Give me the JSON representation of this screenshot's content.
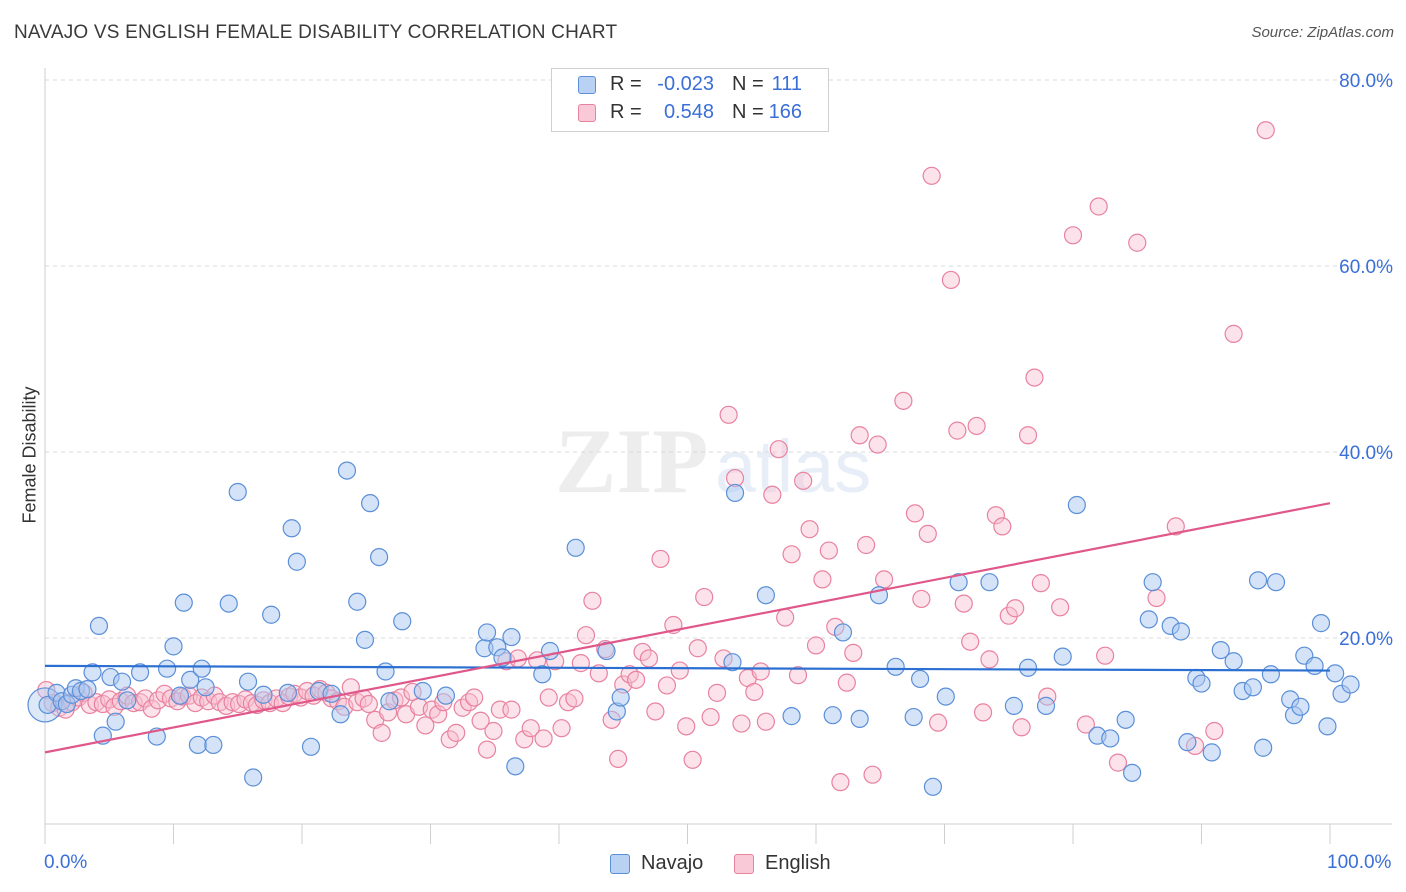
{
  "header": {
    "title": "NAVAJO VS ENGLISH FEMALE DISABILITY CORRELATION CHART",
    "source": "Source: ZipAtlas.com"
  },
  "legend_top": {
    "rows": [
      {
        "r_label": "R =",
        "r_value": "-0.023",
        "n_label": "N =",
        "n_value": "111"
      },
      {
        "r_label": "R =",
        "r_value": "0.548",
        "n_label": "N =",
        "n_value": "166"
      }
    ]
  },
  "colors": {
    "navajo_fill": "#a9c8f0",
    "navajo_stroke": "#5b8fd8",
    "navajo_line": "#2a6fd1",
    "english_fill": "#f8bfd0",
    "english_stroke": "#e8829f",
    "english_line": "#e0578a",
    "accent_text": "#3a6fd8",
    "grid": "#d9d9d9"
  },
  "chart_data": {
    "type": "scatter",
    "title": "NAVAJO VS ENGLISH FEMALE DISABILITY CORRELATION CHART",
    "xlabel": "",
    "ylabel": "Female Disability",
    "xlim": [
      0,
      100
    ],
    "ylim": [
      0,
      80
    ],
    "x_tick_labels": [
      "0.0%",
      "100.0%"
    ],
    "y_tick_labels": [
      "20.0%",
      "40.0%",
      "60.0%",
      "80.0%"
    ],
    "y_ticks": [
      20,
      40,
      60,
      80
    ],
    "grid": true,
    "legend_position": "bottom-center",
    "series": [
      {
        "name": "Navajo",
        "r": -0.023,
        "n": 111,
        "trend": {
          "x0": 0,
          "y0": 17.0,
          "x1": 100,
          "y1": 16.5
        },
        "points": [
          [
            0.2,
            12.8
          ],
          [
            0.9,
            14.1
          ],
          [
            1.3,
            13.2
          ],
          [
            1.7,
            12.9
          ],
          [
            2.1,
            13.9
          ],
          [
            2.4,
            14.6
          ],
          [
            2.8,
            14.3
          ],
          [
            3.3,
            14.5
          ],
          [
            3.7,
            16.3
          ],
          [
            4.2,
            21.3
          ],
          [
            4.5,
            9.5
          ],
          [
            5.1,
            15.8
          ],
          [
            5.5,
            11.0
          ],
          [
            6.0,
            15.3
          ],
          [
            6.4,
            13.3
          ],
          [
            7.4,
            16.3
          ],
          [
            8.7,
            9.4
          ],
          [
            9.5,
            16.7
          ],
          [
            10.0,
            19.1
          ],
          [
            10.5,
            13.8
          ],
          [
            10.8,
            23.8
          ],
          [
            11.3,
            15.5
          ],
          [
            11.9,
            8.5
          ],
          [
            12.2,
            16.7
          ],
          [
            12.5,
            14.7
          ],
          [
            13.1,
            8.5
          ],
          [
            14.3,
            23.7
          ],
          [
            15.0,
            35.7
          ],
          [
            15.8,
            15.3
          ],
          [
            16.2,
            5.0
          ],
          [
            17.0,
            13.9
          ],
          [
            17.6,
            22.5
          ],
          [
            18.9,
            14.1
          ],
          [
            19.2,
            31.8
          ],
          [
            19.6,
            28.2
          ],
          [
            20.7,
            8.3
          ],
          [
            21.3,
            14.3
          ],
          [
            22.3,
            14.0
          ],
          [
            23.0,
            11.8
          ],
          [
            23.5,
            38.0
          ],
          [
            24.3,
            23.9
          ],
          [
            24.9,
            19.8
          ],
          [
            25.3,
            34.5
          ],
          [
            26.0,
            28.7
          ],
          [
            26.5,
            16.4
          ],
          [
            26.8,
            13.2
          ],
          [
            27.8,
            21.8
          ],
          [
            29.4,
            14.3
          ],
          [
            31.2,
            13.8
          ],
          [
            34.2,
            18.9
          ],
          [
            34.4,
            20.6
          ],
          [
            35.2,
            19.0
          ],
          [
            35.6,
            17.9
          ],
          [
            36.3,
            20.1
          ],
          [
            36.6,
            6.2
          ],
          [
            38.7,
            16.1
          ],
          [
            39.3,
            18.6
          ],
          [
            41.3,
            29.7
          ],
          [
            43.7,
            18.6
          ],
          [
            44.5,
            12.1
          ],
          [
            44.8,
            13.6
          ],
          [
            53.5,
            17.4
          ],
          [
            53.7,
            35.6
          ],
          [
            56.1,
            24.6
          ],
          [
            58.1,
            11.6
          ],
          [
            61.3,
            11.7
          ],
          [
            62.1,
            20.6
          ],
          [
            63.4,
            11.3
          ],
          [
            64.9,
            24.6
          ],
          [
            66.2,
            16.9
          ],
          [
            67.6,
            11.5
          ],
          [
            68.1,
            15.6
          ],
          [
            69.1,
            4.0
          ],
          [
            70.1,
            13.7
          ],
          [
            71.1,
            26.0
          ],
          [
            73.5,
            26.0
          ],
          [
            75.4,
            12.7
          ],
          [
            76.5,
            16.8
          ],
          [
            77.9,
            12.7
          ],
          [
            79.2,
            18.0
          ],
          [
            80.3,
            34.3
          ],
          [
            81.9,
            9.5
          ],
          [
            82.9,
            9.2
          ],
          [
            84.1,
            11.2
          ],
          [
            84.6,
            5.5
          ],
          [
            85.9,
            22.0
          ],
          [
            86.2,
            26.0
          ],
          [
            87.6,
            21.3
          ],
          [
            88.4,
            20.7
          ],
          [
            88.9,
            8.8
          ],
          [
            89.6,
            15.7
          ],
          [
            90.0,
            15.1
          ],
          [
            90.8,
            7.7
          ],
          [
            91.5,
            18.7
          ],
          [
            92.5,
            17.5
          ],
          [
            93.2,
            14.3
          ],
          [
            94.0,
            14.7
          ],
          [
            94.4,
            26.2
          ],
          [
            94.8,
            8.2
          ],
          [
            95.4,
            16.1
          ],
          [
            95.8,
            26.0
          ],
          [
            96.9,
            13.4
          ],
          [
            97.2,
            11.7
          ],
          [
            97.7,
            12.6
          ],
          [
            98.0,
            18.1
          ],
          [
            98.8,
            17.0
          ],
          [
            99.3,
            21.6
          ],
          [
            99.8,
            10.5
          ],
          [
            100.4,
            16.2
          ],
          [
            100.9,
            14.0
          ],
          [
            101.6,
            15.0
          ]
        ]
      },
      {
        "name": "English",
        "r": 0.548,
        "n": 166,
        "trend": {
          "x0": 0,
          "y0": 7.7,
          "x1": 100,
          "y1": 34.5
        },
        "points": [
          [
            0.1,
            14.4
          ],
          [
            0.6,
            13.0
          ],
          [
            1.1,
            12.5
          ],
          [
            1.6,
            12.3
          ],
          [
            2.1,
            13.1
          ],
          [
            2.6,
            13.6
          ],
          [
            3.0,
            14.1
          ],
          [
            3.5,
            12.8
          ],
          [
            4.0,
            13.1
          ],
          [
            4.5,
            12.9
          ],
          [
            5.0,
            13.4
          ],
          [
            5.4,
            12.6
          ],
          [
            5.9,
            13.2
          ],
          [
            6.4,
            13.8
          ],
          [
            6.9,
            13.0
          ],
          [
            7.4,
            13.1
          ],
          [
            7.8,
            13.5
          ],
          [
            8.3,
            12.4
          ],
          [
            8.8,
            13.3
          ],
          [
            9.3,
            14.0
          ],
          [
            9.8,
            13.5
          ],
          [
            10.3,
            13.2
          ],
          [
            10.7,
            13.7
          ],
          [
            11.2,
            13.8
          ],
          [
            11.7,
            13.0
          ],
          [
            12.2,
            13.6
          ],
          [
            12.7,
            13.2
          ],
          [
            13.2,
            13.8
          ],
          [
            13.6,
            13.1
          ],
          [
            14.1,
            12.7
          ],
          [
            14.6,
            13.1
          ],
          [
            15.1,
            12.9
          ],
          [
            15.6,
            13.4
          ],
          [
            16.1,
            13.0
          ],
          [
            16.5,
            12.8
          ],
          [
            17.0,
            13.3
          ],
          [
            17.5,
            13.0
          ],
          [
            18.0,
            13.5
          ],
          [
            18.5,
            13.0
          ],
          [
            19.0,
            13.7
          ],
          [
            19.4,
            14.0
          ],
          [
            19.9,
            13.6
          ],
          [
            20.4,
            14.3
          ],
          [
            20.9,
            13.8
          ],
          [
            21.4,
            14.5
          ],
          [
            21.9,
            14.1
          ],
          [
            22.3,
            13.5
          ],
          [
            22.8,
            13.2
          ],
          [
            23.3,
            12.6
          ],
          [
            23.8,
            14.7
          ],
          [
            24.3,
            13.1
          ],
          [
            24.8,
            13.5
          ],
          [
            25.2,
            12.9
          ],
          [
            25.7,
            11.2
          ],
          [
            26.2,
            9.8
          ],
          [
            26.7,
            12.0
          ],
          [
            27.2,
            13.3
          ],
          [
            27.7,
            13.6
          ],
          [
            28.1,
            11.8
          ],
          [
            28.6,
            14.2
          ],
          [
            29.1,
            12.6
          ],
          [
            29.6,
            10.6
          ],
          [
            30.1,
            12.3
          ],
          [
            30.6,
            11.8
          ],
          [
            31.0,
            13.1
          ],
          [
            31.5,
            9.1
          ],
          [
            32.0,
            9.8
          ],
          [
            32.5,
            12.5
          ],
          [
            33.0,
            13.1
          ],
          [
            33.4,
            13.6
          ],
          [
            33.9,
            11.1
          ],
          [
            34.4,
            8.0
          ],
          [
            34.9,
            10.0
          ],
          [
            35.4,
            12.3
          ],
          [
            35.9,
            17.5
          ],
          [
            36.3,
            12.3
          ],
          [
            36.8,
            17.8
          ],
          [
            37.3,
            9.1
          ],
          [
            37.8,
            10.3
          ],
          [
            38.3,
            17.6
          ],
          [
            38.8,
            9.2
          ],
          [
            39.2,
            13.6
          ],
          [
            39.7,
            17.5
          ],
          [
            40.2,
            10.3
          ],
          [
            40.7,
            13.1
          ],
          [
            41.2,
            13.5
          ],
          [
            41.7,
            17.3
          ],
          [
            42.1,
            20.3
          ],
          [
            42.6,
            24.0
          ],
          [
            43.1,
            16.2
          ],
          [
            43.6,
            18.8
          ],
          [
            44.1,
            11.2
          ],
          [
            44.6,
            7.0
          ],
          [
            45.0,
            15.0
          ],
          [
            45.5,
            16.1
          ],
          [
            46.0,
            15.5
          ],
          [
            46.5,
            18.5
          ],
          [
            47.0,
            17.8
          ],
          [
            47.5,
            12.1
          ],
          [
            47.9,
            28.5
          ],
          [
            48.4,
            14.9
          ],
          [
            48.9,
            21.4
          ],
          [
            49.4,
            16.5
          ],
          [
            49.9,
            10.5
          ],
          [
            50.4,
            6.9
          ],
          [
            50.8,
            18.9
          ],
          [
            51.3,
            24.4
          ],
          [
            51.8,
            11.5
          ],
          [
            52.3,
            14.1
          ],
          [
            52.8,
            17.8
          ],
          [
            53.2,
            44.0
          ],
          [
            53.7,
            37.2
          ],
          [
            54.2,
            10.8
          ],
          [
            54.7,
            15.7
          ],
          [
            55.2,
            14.2
          ],
          [
            55.7,
            16.4
          ],
          [
            56.1,
            11.0
          ],
          [
            56.6,
            35.4
          ],
          [
            57.1,
            40.3
          ],
          [
            57.6,
            22.2
          ],
          [
            58.1,
            29.0
          ],
          [
            58.6,
            16.0
          ],
          [
            59.0,
            36.9
          ],
          [
            59.5,
            31.7
          ],
          [
            60.0,
            19.2
          ],
          [
            60.5,
            26.3
          ],
          [
            61.0,
            29.4
          ],
          [
            61.5,
            21.2
          ],
          [
            61.9,
            4.5
          ],
          [
            62.4,
            15.2
          ],
          [
            62.9,
            18.4
          ],
          [
            63.4,
            41.8
          ],
          [
            63.9,
            30.0
          ],
          [
            64.4,
            5.3
          ],
          [
            64.8,
            40.8
          ],
          [
            65.3,
            26.3
          ],
          [
            66.8,
            45.5
          ],
          [
            67.7,
            33.4
          ],
          [
            68.2,
            24.2
          ],
          [
            68.7,
            31.2
          ],
          [
            69.0,
            69.7
          ],
          [
            69.5,
            10.9
          ],
          [
            70.5,
            58.5
          ],
          [
            71.0,
            42.3
          ],
          [
            71.5,
            23.7
          ],
          [
            72.0,
            19.6
          ],
          [
            72.5,
            42.8
          ],
          [
            73.0,
            12.0
          ],
          [
            73.5,
            17.7
          ],
          [
            74.0,
            33.2
          ],
          [
            74.5,
            32.0
          ],
          [
            75.0,
            22.4
          ],
          [
            75.5,
            23.2
          ],
          [
            76.0,
            10.4
          ],
          [
            76.5,
            41.8
          ],
          [
            77.0,
            48.0
          ],
          [
            77.5,
            25.9
          ],
          [
            78.0,
            13.7
          ],
          [
            79.0,
            23.3
          ],
          [
            80.0,
            63.3
          ],
          [
            81.0,
            10.7
          ],
          [
            82.0,
            66.4
          ],
          [
            82.5,
            18.1
          ],
          [
            83.5,
            6.6
          ],
          [
            85.0,
            62.5
          ],
          [
            86.5,
            24.3
          ],
          [
            88.0,
            32.0
          ],
          [
            89.5,
            8.4
          ],
          [
            91.0,
            10.0
          ],
          [
            92.5,
            52.7
          ],
          [
            95.0,
            74.6
          ]
        ]
      }
    ]
  },
  "legend_bottom": {
    "items": [
      {
        "label": "Navajo"
      },
      {
        "label": "English"
      }
    ]
  },
  "watermark": "ZIPatlas"
}
